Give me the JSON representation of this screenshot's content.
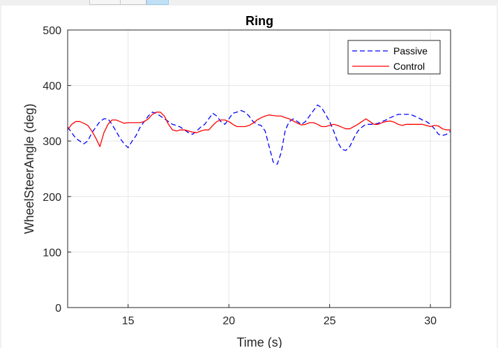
{
  "window": {
    "accent_color": "#bfe0f5"
  },
  "chart_data": {
    "type": "line",
    "title": "Ring",
    "xlabel": "Time (s)",
    "ylabel": "WheelSteerAngle  (deg)",
    "xlim": [
      12,
      31
    ],
    "ylim": [
      0,
      500
    ],
    "xticks": [
      15,
      20,
      25,
      30
    ],
    "yticks": [
      0,
      100,
      200,
      300,
      400,
      500
    ],
    "grid": true,
    "legend_location": "top-right",
    "series": [
      {
        "name": "Passive",
        "color": "#0000ff",
        "style": "dashed",
        "x": [
          12.0,
          12.2,
          12.4,
          12.6,
          12.8,
          13.0,
          13.2,
          13.4,
          13.6,
          13.8,
          14.0,
          14.2,
          14.4,
          14.6,
          14.8,
          15.0,
          15.2,
          15.4,
          15.6,
          15.8,
          16.0,
          16.2,
          16.4,
          16.6,
          16.8,
          17.0,
          17.2,
          17.4,
          17.6,
          17.8,
          18.0,
          18.2,
          18.4,
          18.6,
          18.8,
          19.0,
          19.2,
          19.4,
          19.6,
          19.8,
          20.0,
          20.2,
          20.4,
          20.6,
          20.8,
          21.0,
          21.2,
          21.4,
          21.6,
          21.8,
          22.0,
          22.2,
          22.4,
          22.6,
          22.8,
          23.0,
          23.2,
          23.4,
          23.6,
          23.8,
          24.0,
          24.2,
          24.4,
          24.6,
          24.8,
          25.0,
          25.2,
          25.4,
          25.6,
          25.8,
          26.0,
          26.2,
          26.4,
          26.6,
          26.8,
          27.0,
          27.2,
          27.4,
          27.6,
          27.8,
          28.0,
          28.2,
          28.4,
          28.6,
          28.8,
          29.0,
          29.2,
          29.4,
          29.6,
          29.8,
          30.0,
          30.2,
          30.4,
          30.6,
          30.8,
          31.0
        ],
        "y": [
          325,
          315,
          305,
          300,
          295,
          300,
          315,
          325,
          335,
          340,
          340,
          330,
          318,
          305,
          295,
          288,
          300,
          310,
          325,
          335,
          345,
          352,
          350,
          345,
          340,
          335,
          330,
          328,
          325,
          320,
          315,
          312,
          318,
          325,
          330,
          340,
          350,
          345,
          335,
          330,
          340,
          350,
          352,
          355,
          352,
          345,
          335,
          330,
          328,
          318,
          290,
          262,
          258,
          280,
          320,
          335,
          340,
          335,
          330,
          335,
          345,
          355,
          365,
          360,
          348,
          335,
          318,
          298,
          285,
          283,
          290,
          305,
          318,
          325,
          330,
          330,
          330,
          332,
          335,
          338,
          342,
          345,
          348,
          348,
          348,
          348,
          345,
          342,
          338,
          335,
          330,
          322,
          312,
          310,
          312,
          318
        ]
      },
      {
        "name": "Control",
        "color": "#ff0000",
        "style": "solid",
        "x": [
          12.0,
          12.2,
          12.4,
          12.6,
          12.8,
          13.0,
          13.2,
          13.4,
          13.6,
          13.8,
          14.0,
          14.2,
          14.4,
          14.6,
          14.8,
          15.0,
          15.2,
          15.4,
          15.6,
          15.8,
          16.0,
          16.2,
          16.4,
          16.6,
          16.8,
          17.0,
          17.2,
          17.4,
          17.6,
          17.8,
          18.0,
          18.2,
          18.4,
          18.6,
          18.8,
          19.0,
          19.2,
          19.4,
          19.6,
          19.8,
          20.0,
          20.2,
          20.4,
          20.6,
          20.8,
          21.0,
          21.2,
          21.4,
          21.6,
          21.8,
          22.0,
          22.2,
          22.4,
          22.6,
          22.8,
          23.0,
          23.2,
          23.4,
          23.6,
          23.8,
          24.0,
          24.2,
          24.4,
          24.6,
          24.8,
          25.0,
          25.2,
          25.4,
          25.6,
          25.8,
          26.0,
          26.2,
          26.4,
          26.6,
          26.8,
          27.0,
          27.2,
          27.4,
          27.6,
          27.8,
          28.0,
          28.2,
          28.4,
          28.6,
          28.8,
          29.0,
          29.2,
          29.4,
          29.6,
          29.8,
          30.0,
          30.2,
          30.4,
          30.6,
          30.8,
          31.0
        ],
        "y": [
          320,
          330,
          335,
          335,
          332,
          328,
          318,
          305,
          290,
          315,
          330,
          338,
          338,
          335,
          332,
          333,
          333,
          333,
          333,
          335,
          340,
          348,
          352,
          352,
          345,
          330,
          320,
          318,
          320,
          320,
          318,
          316,
          315,
          318,
          320,
          320,
          328,
          335,
          338,
          338,
          335,
          330,
          326,
          326,
          326,
          328,
          332,
          338,
          342,
          345,
          347,
          346,
          345,
          345,
          342,
          340,
          336,
          332,
          329,
          330,
          333,
          333,
          330,
          326,
          326,
          328,
          330,
          328,
          325,
          322,
          322,
          326,
          330,
          335,
          340,
          335,
          330,
          330,
          333,
          335,
          336,
          334,
          330,
          328,
          330,
          330,
          330,
          330,
          330,
          328,
          326,
          328,
          327,
          322,
          320,
          320
        ]
      }
    ]
  }
}
